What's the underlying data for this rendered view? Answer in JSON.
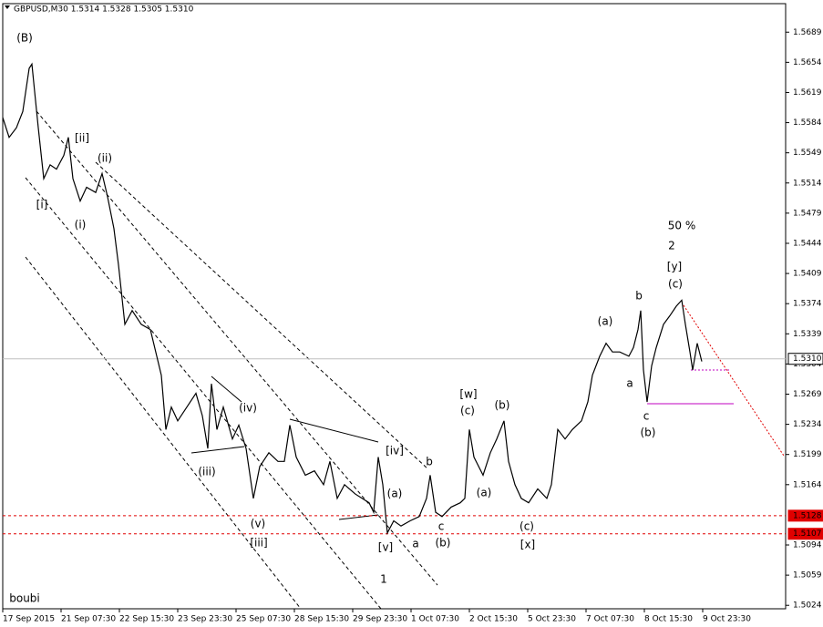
{
  "chart_data": {
    "type": "line",
    "title": "GBPUSD,M30  1.5314 1.5328 1.5305 1.5310",
    "color": "#000000",
    "xlim": [
      0,
      429.5
    ],
    "ylim": [
      1.502,
      1.5721
    ],
    "xticks": [
      {
        "value": 0,
        "label": "17 Sep 2015"
      },
      {
        "value": 32,
        "label": "21 Sep 07:30"
      },
      {
        "value": 64,
        "label": "22 Sep 15:30"
      },
      {
        "value": 96,
        "label": "23 Sep 23:30"
      },
      {
        "value": 128,
        "label": "25 Sep 07:30"
      },
      {
        "value": 160,
        "label": "28 Sep 15:30"
      },
      {
        "value": 192,
        "label": "29 Sep 23:30"
      },
      {
        "value": 224,
        "label": "1 Oct 07:30"
      },
      {
        "value": 256,
        "label": "2 Oct 15:30"
      },
      {
        "value": 288,
        "label": "5 Oct 23:30"
      },
      {
        "value": 320,
        "label": "7 Oct 07:30"
      },
      {
        "value": 352,
        "label": "8 Oct 15:30"
      },
      {
        "value": 384,
        "label": "9 Oct 23:30"
      }
    ],
    "yticks": [
      1.5689,
      1.5654,
      1.5619,
      1.5584,
      1.5549,
      1.5514,
      1.5479,
      1.5444,
      1.5409,
      1.5374,
      1.5339,
      1.5304,
      1.5269,
      1.5234,
      1.5199,
      1.5164,
      1.5094,
      1.5059,
      1.5024
    ],
    "grid": false,
    "hlines": [
      {
        "value": 1.531,
        "label": "1.5310",
        "color": "#c0c0c0"
      },
      {
        "value": 1.5128,
        "label": "1.5128",
        "color": "#e00000"
      },
      {
        "value": 1.5107,
        "label": "1.5107",
        "color": "#e00000"
      }
    ],
    "x": [
      0,
      3.5,
      7.5,
      11,
      14.5,
      16,
      17.5,
      19.5,
      22.5,
      26,
      29.5,
      33.5,
      36,
      38.5,
      42.5,
      46,
      51,
      54.5,
      57.5,
      61,
      63.5,
      67,
      71,
      76,
      81,
      84.5,
      87,
      89.5,
      92.5,
      96,
      101,
      106,
      109.5,
      112.5,
      114.5,
      117.5,
      121,
      126,
      129.5,
      133.5,
      137.5,
      141,
      146,
      151,
      154.5,
      157.5,
      161,
      166,
      171,
      176,
      179.5,
      183.5,
      187.5,
      193.5,
      201,
      203.5,
      206,
      208.5,
      211,
      214.5,
      218.5,
      223.5,
      228.5,
      232.5,
      234.5,
      237.5,
      241,
      246,
      251,
      253.5,
      256,
      258.5,
      263.5,
      267.5,
      271,
      275,
      277.5,
      281,
      284.5,
      288.5,
      293.5,
      298.5,
      301,
      304.5,
      308.5,
      312.5,
      317.5,
      321,
      323.5,
      327.5,
      331,
      334.5,
      338.5,
      343.5,
      346,
      348.5,
      350,
      351.5,
      353.5,
      356,
      358.5,
      362.5,
      366,
      369.5,
      372.5,
      374.5,
      377,
      378.5,
      381,
      383.5
    ],
    "values": [
      1.559,
      1.5567,
      1.5578,
      1.5597,
      1.5647,
      1.5652,
      1.562,
      1.5578,
      1.5519,
      1.5535,
      1.553,
      1.5546,
      1.5567,
      1.5519,
      1.5493,
      1.5509,
      1.5503,
      1.5525,
      1.5498,
      1.5461,
      1.5419,
      1.535,
      1.5366,
      1.535,
      1.5344,
      1.5313,
      1.5291,
      1.5228,
      1.5254,
      1.5238,
      1.5254,
      1.527,
      1.5244,
      1.5206,
      1.5281,
      1.5228,
      1.5254,
      1.5217,
      1.5233,
      1.5206,
      1.5148,
      1.5185,
      1.5201,
      1.5191,
      1.5191,
      1.5233,
      1.5196,
      1.5175,
      1.518,
      1.5164,
      1.5191,
      1.5148,
      1.5164,
      1.5153,
      1.5143,
      1.5132,
      1.5196,
      1.5164,
      1.5108,
      1.5122,
      1.5116,
      1.5122,
      1.5127,
      1.5148,
      1.5175,
      1.5132,
      1.5127,
      1.5138,
      1.5143,
      1.5148,
      1.5228,
      1.5196,
      1.5175,
      1.5201,
      1.5217,
      1.5238,
      1.5191,
      1.5164,
      1.5148,
      1.5143,
      1.5159,
      1.5148,
      1.5164,
      1.5228,
      1.5217,
      1.5228,
      1.5238,
      1.526,
      1.5291,
      1.5313,
      1.5328,
      1.5318,
      1.5318,
      1.5313,
      1.5323,
      1.5344,
      1.5366,
      1.5297,
      1.526,
      1.5302,
      1.5323,
      1.535,
      1.536,
      1.5371,
      1.5378,
      1.535,
      1.5318,
      1.5297,
      1.5328,
      1.5307
    ],
    "annotations": [
      "(B)",
      "[ii]",
      "(ii)",
      "[i]",
      "(i)",
      "(iv)",
      "(iii)",
      "(v)",
      "[iii]",
      "[iv]",
      "(a)",
      "[v]",
      "a",
      "b",
      "c",
      "(b)",
      "1",
      "[w]",
      "(c)",
      "(b)",
      "(a)",
      "(c)",
      "[x]",
      "(a)",
      "a",
      "b",
      "c",
      "(b)",
      "50 %",
      "2",
      "[y]",
      "(c)",
      "boubi"
    ]
  }
}
